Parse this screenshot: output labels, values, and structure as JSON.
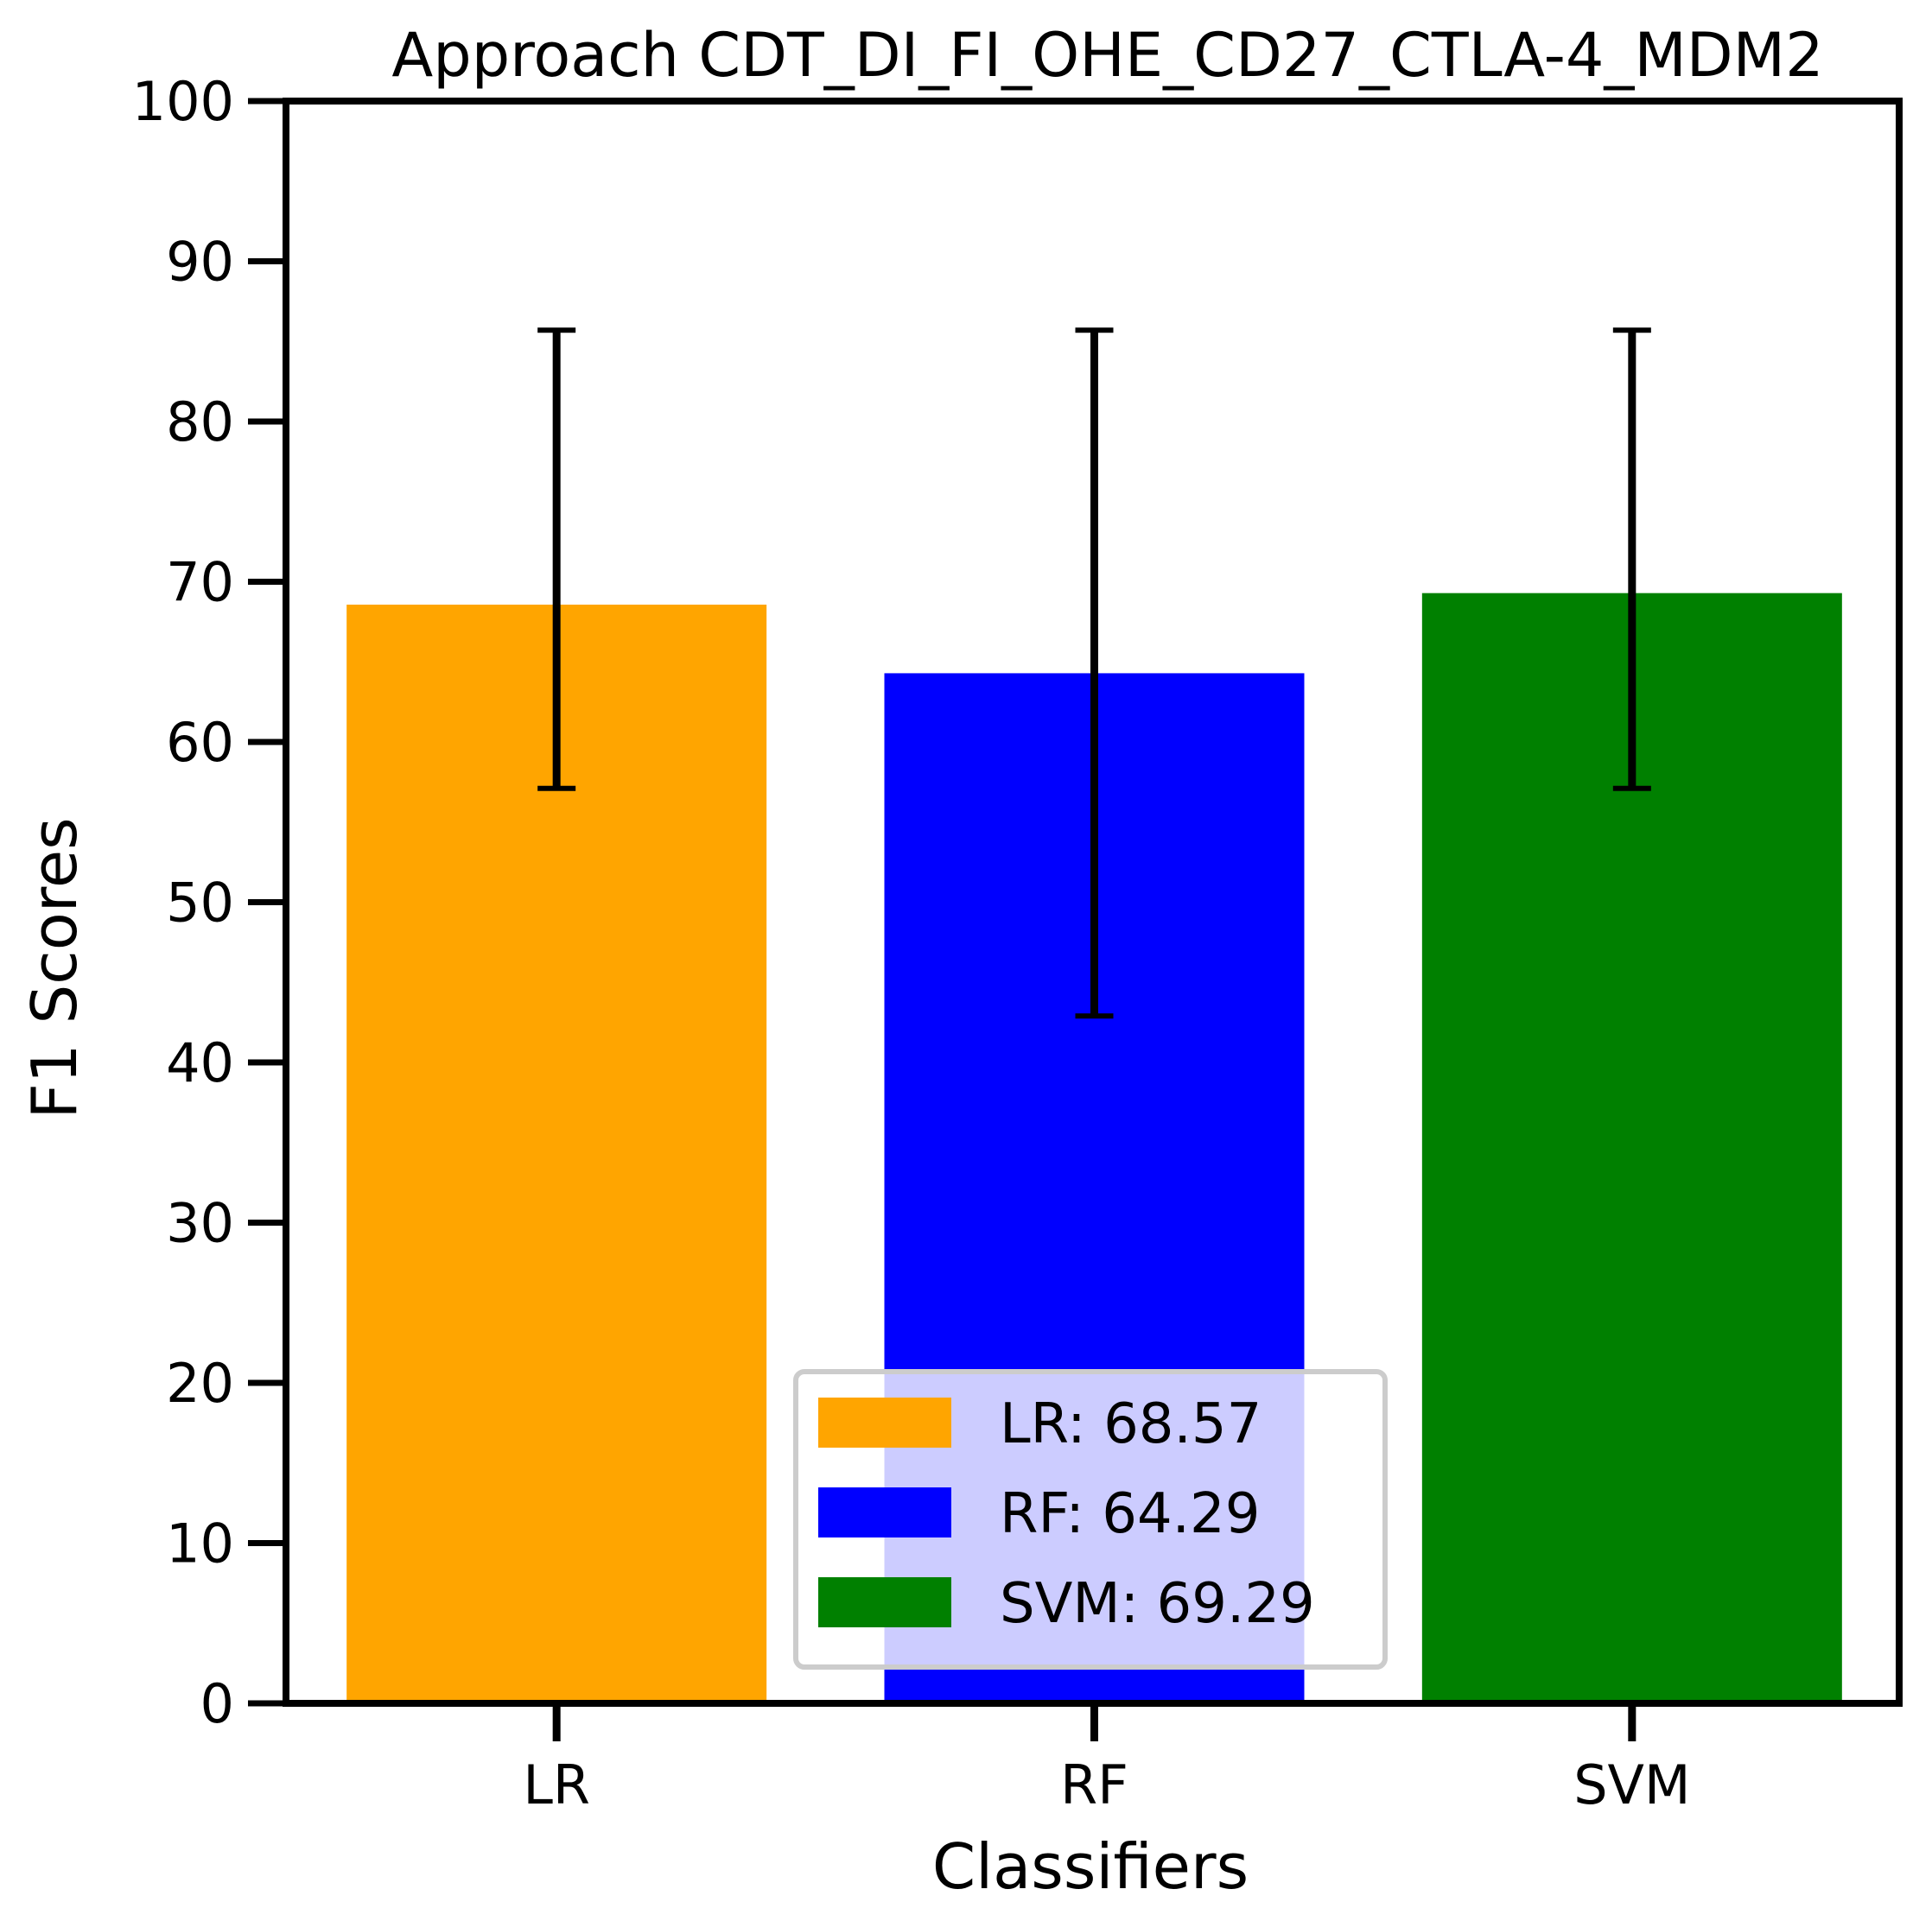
{
  "chart_data": {
    "type": "bar",
    "title": "Approach CDT_DI_FI_OHE_CD27_CTLA-4_MDM2",
    "xlabel": "Classifiers",
    "ylabel": "F1 Scores",
    "ylim": [
      0,
      100
    ],
    "yticks": [
      "0",
      "10",
      "20",
      "30",
      "40",
      "50",
      "60",
      "70",
      "80",
      "90",
      "100"
    ],
    "categories": [
      "LR",
      "RF",
      "SVM"
    ],
    "values": [
      68.57,
      64.29,
      69.29
    ],
    "error_low": [
      57.1,
      42.9,
      57.1
    ],
    "error_high": [
      85.7,
      85.7,
      85.7
    ],
    "colors": [
      "#ffa500",
      "#0000ff",
      "#008000"
    ],
    "grid": false,
    "legend": {
      "placement": "lower-center",
      "entries": [
        "LR: 68.57",
        "RF: 64.29",
        "SVM: 69.29"
      ]
    }
  }
}
